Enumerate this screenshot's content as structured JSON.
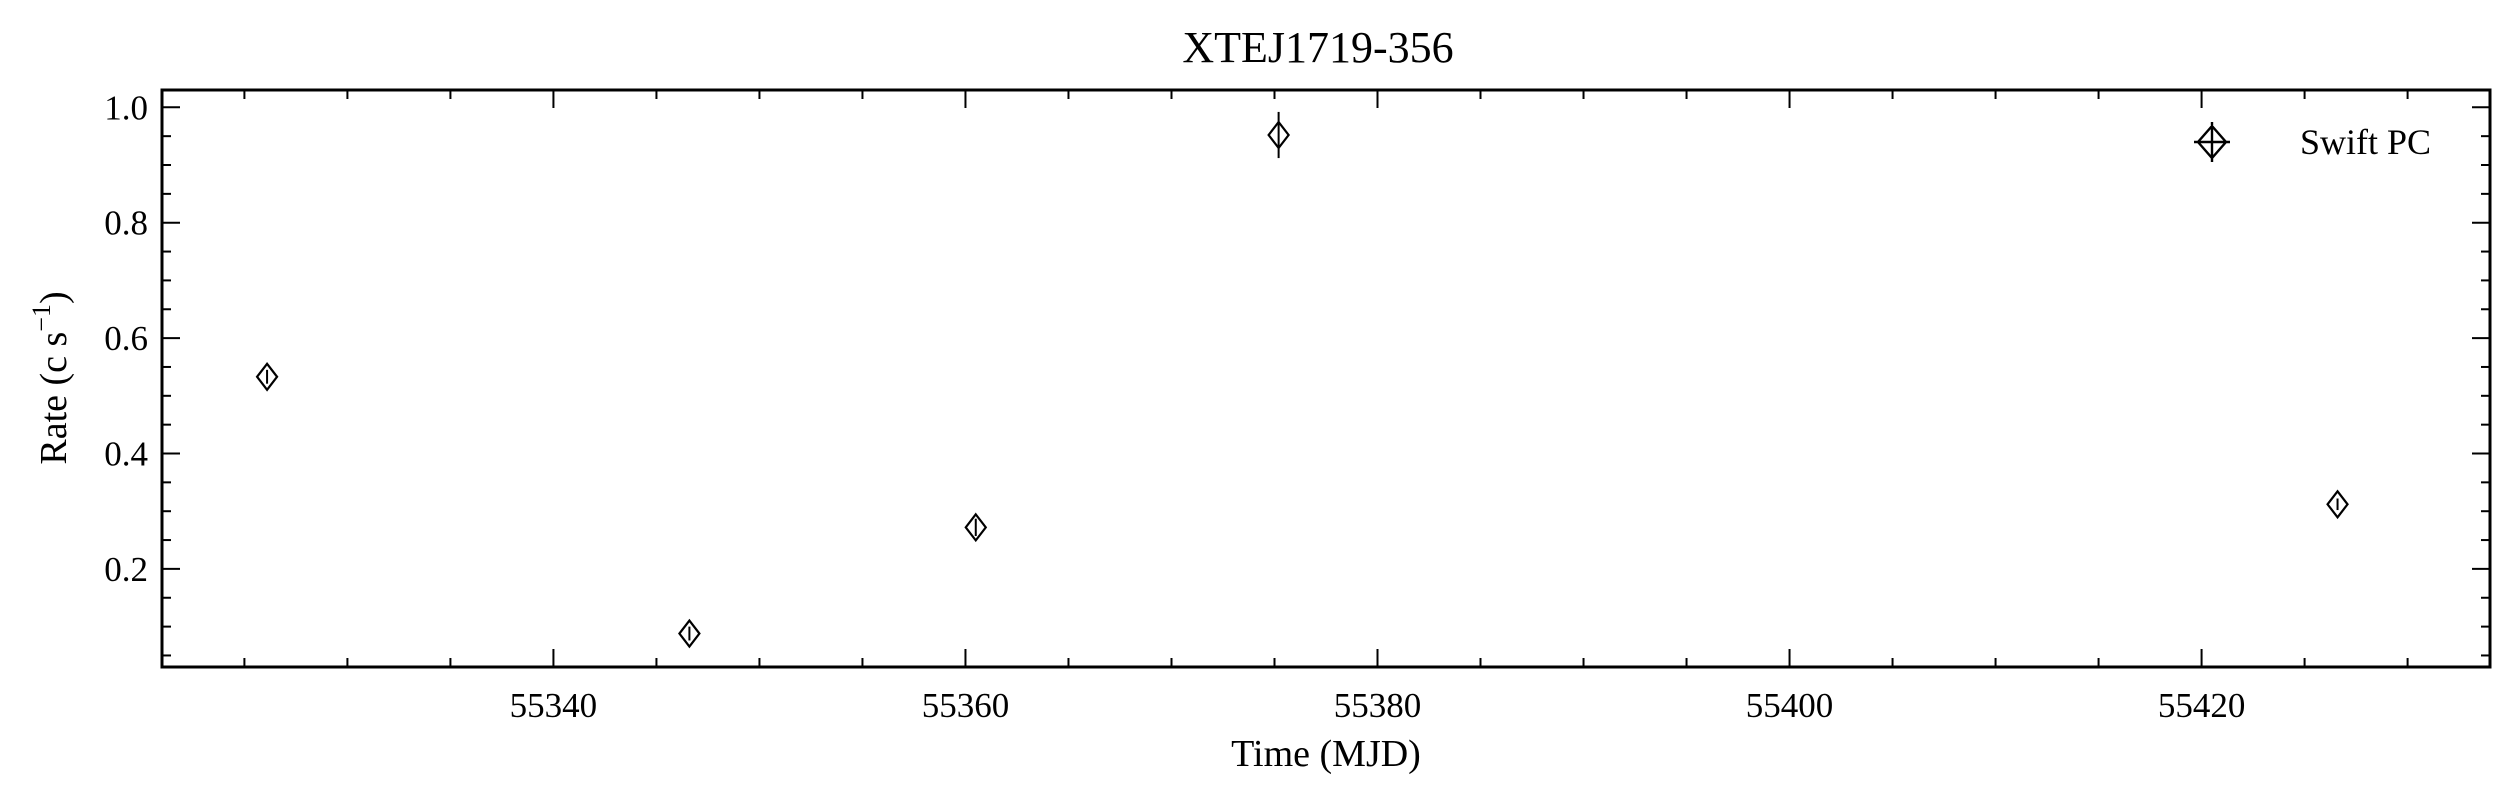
{
  "chart_data": {
    "type": "scatter",
    "title": "XTEJ1719-356",
    "xlabel": "Time (MJD)",
    "ylabel_main": "Rate (c s",
    "ylabel_sup": "−1",
    "ylabel_close": ")",
    "xlim": [
      55321.0,
      55434.0
    ],
    "ylim": [
      0.03,
      1.03
    ],
    "xticks": [
      55340,
      55360,
      55380,
      55400,
      55420
    ],
    "xtick_labels": [
      "55340",
      "55360",
      "55380",
      "55400",
      "55420"
    ],
    "yticks": [
      0.2,
      0.4,
      0.6,
      0.8,
      1.0
    ],
    "ytick_labels": [
      "0.2",
      "0.4",
      "0.6",
      "0.8",
      "1.0"
    ],
    "legend_position": "top-right",
    "grid": false,
    "series": [
      {
        "name": "Swift PC",
        "marker": "thin-diamond",
        "color": "#000000",
        "points": [
          {
            "x": 55326.1,
            "y": 0.533,
            "yerr": 0.012
          },
          {
            "x": 55346.6,
            "y": 0.088,
            "yerr": 0.012
          },
          {
            "x": 55360.5,
            "y": 0.272,
            "yerr": 0.015
          },
          {
            "x": 55375.2,
            "y": 0.952,
            "yerr": 0.04
          },
          {
            "x": 55426.6,
            "y": 0.312,
            "yerr": 0.01
          }
        ]
      }
    ]
  }
}
